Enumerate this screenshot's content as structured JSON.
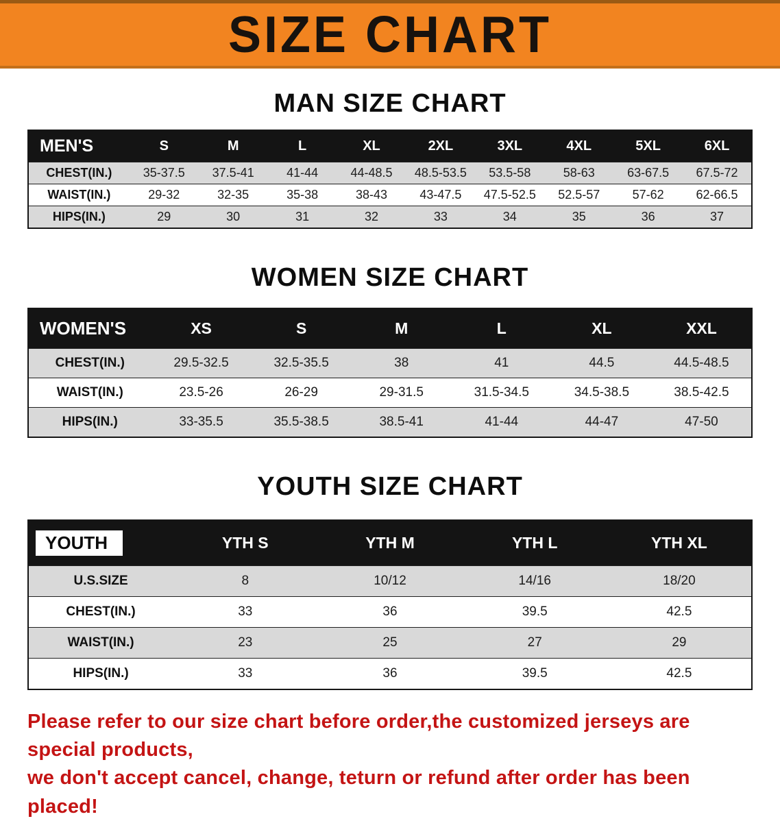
{
  "banner": {
    "title": "SIZE CHART"
  },
  "sections": [
    {
      "heading": "MAN SIZE CHART",
      "table": {
        "header": [
          "MEN'S",
          "S",
          "M",
          "L",
          "XL",
          "2XL",
          "3XL",
          "4XL",
          "5XL",
          "6XL"
        ],
        "rows": [
          [
            "CHEST(IN.)",
            "35-37.5",
            "37.5-41",
            "41-44",
            "44-48.5",
            "48.5-53.5",
            "53.5-58",
            "58-63",
            "63-67.5",
            "67.5-72"
          ],
          [
            "WAIST(IN.)",
            "29-32",
            "32-35",
            "35-38",
            "38-43",
            "43-47.5",
            "47.5-52.5",
            "52.5-57",
            "57-62",
            "62-66.5"
          ],
          [
            "HIPS(IN.)",
            "29",
            "30",
            "31",
            "32",
            "33",
            "34",
            "35",
            "36",
            "37"
          ]
        ]
      }
    },
    {
      "heading": "WOMEN SIZE CHART",
      "table": {
        "header": [
          "WOMEN'S",
          "XS",
          "S",
          "M",
          "L",
          "XL",
          "XXL"
        ],
        "rows": [
          [
            "CHEST(IN.)",
            "29.5-32.5",
            "32.5-35.5",
            "38",
            "41",
            "44.5",
            "44.5-48.5"
          ],
          [
            "WAIST(IN.)",
            "23.5-26",
            "26-29",
            "29-31.5",
            "31.5-34.5",
            "34.5-38.5",
            "38.5-42.5"
          ],
          [
            "HIPS(IN.)",
            "33-35.5",
            "35.5-38.5",
            "38.5-41",
            "41-44",
            "44-47",
            "47-50"
          ]
        ]
      }
    },
    {
      "heading": "YOUTH SIZE CHART",
      "table": {
        "header": [
          "YOUTH",
          "YTH S",
          "YTH M",
          "YTH L",
          "YTH XL"
        ],
        "rows": [
          [
            "U.S.SIZE",
            "8",
            "10/12",
            "14/16",
            "18/20"
          ],
          [
            "CHEST(IN.)",
            "33",
            "36",
            "39.5",
            "42.5"
          ],
          [
            "WAIST(IN.)",
            "23",
            "25",
            "27",
            "29"
          ],
          [
            "HIPS(IN.)",
            "33",
            "36",
            "39.5",
            "42.5"
          ]
        ]
      }
    }
  ],
  "disclaimer": {
    "lines": [
      "Please refer to our size chart before order,the customized jerseys are special products,",
      "we don't accept cancel, change, teturn or refund after order has been placed!"
    ]
  },
  "colors": {
    "banner_bg": "#f28420",
    "table_header_bg": "#141414",
    "row_alt_bg": "#d9d9d9",
    "disclaimer_red": "#c41414"
  }
}
